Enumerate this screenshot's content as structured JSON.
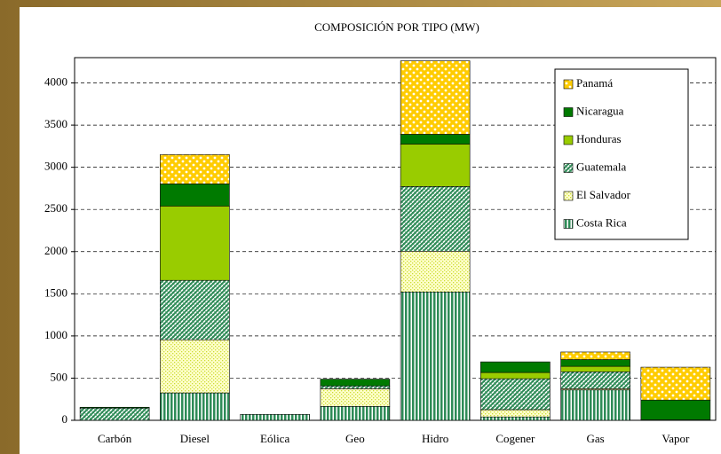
{
  "chart_data": {
    "type": "stacked_bar",
    "title": "COMPOSICIÓN POR TIPO (MW)",
    "categories": [
      "Carbón",
      "Diesel",
      "Eólica",
      "Geo",
      "Hidro",
      "Cogener",
      "Gas",
      "Vapor"
    ],
    "series": [
      {
        "name": "Costa Rica",
        "color": "#2e8b57",
        "values": [
          0,
          325,
          70,
          165,
          1522,
          40,
          360,
          5
        ]
      },
      {
        "name": "El Salvador",
        "color": "#ccdd33",
        "values": [
          0,
          630,
          0,
          210,
          483,
          86,
          15,
          0
        ]
      },
      {
        "name": "Guatemala",
        "color": "#2e8b57",
        "values": [
          145,
          704,
          0,
          33,
          767,
          367,
          200,
          0
        ]
      },
      {
        "name": "Honduras",
        "color": "#99cc00",
        "values": [
          0,
          882,
          0,
          0,
          504,
          74,
          65,
          0
        ]
      },
      {
        "name": "Nicaragua",
        "color": "#007a00",
        "values": [
          10,
          262,
          0,
          80,
          115,
          126,
          80,
          235
        ]
      },
      {
        "name": "Panamá",
        "color": "#ffcc00",
        "values": [
          0,
          347,
          0,
          0,
          871,
          0,
          90,
          390
        ]
      }
    ],
    "ylim": [
      0,
      4300
    ],
    "yticks": [
      0,
      500,
      1000,
      1500,
      2000,
      2500,
      3000,
      3500,
      4000
    ],
    "grid": true,
    "legend": "top-right"
  }
}
